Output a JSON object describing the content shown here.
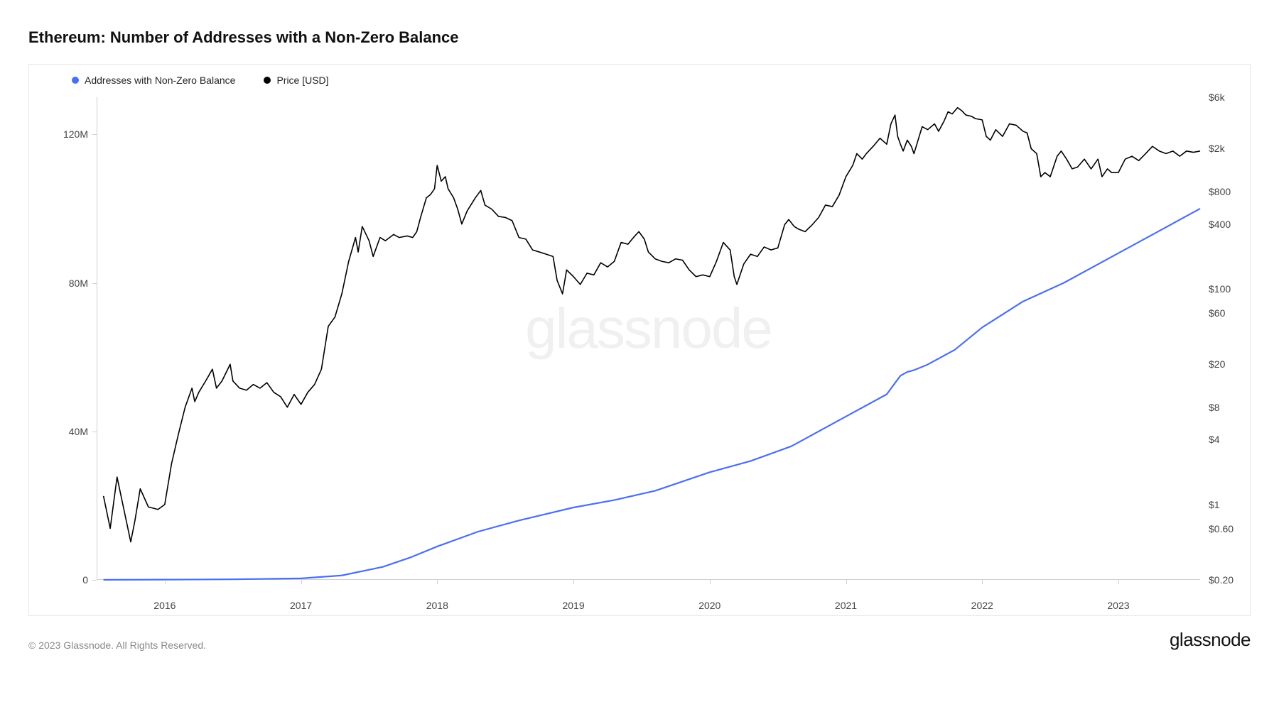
{
  "title": "Ethereum: Number of Addresses with a Non-Zero Balance",
  "copyright": "© 2023 Glassnode. All Rights Reserved.",
  "brand": "glassnode",
  "watermark": "glassnode",
  "legend": {
    "series1": {
      "label": "Addresses with Non-Zero Balance",
      "color": "#4a6ff5"
    },
    "series2": {
      "label": "Price [USD]",
      "color": "#000000"
    }
  },
  "chart": {
    "background_color": "#ffffff",
    "border_color": "#e6e6e6",
    "axis_color": "#cfcfcf",
    "tick_color": "#cfcfcf",
    "label_color": "#444444",
    "label_fontsize": 14,
    "x": {
      "domain": [
        2015.5,
        2023.6
      ],
      "ticks": [
        2016,
        2017,
        2018,
        2019,
        2020,
        2021,
        2022,
        2023
      ],
      "tick_labels": [
        "2016",
        "2017",
        "2018",
        "2019",
        "2020",
        "2021",
        "2022",
        "2023"
      ]
    },
    "y_left": {
      "scale": "linear",
      "domain": [
        0,
        130000000
      ],
      "ticks": [
        0,
        40000000,
        80000000,
        120000000
      ],
      "tick_labels": [
        "0",
        "40M",
        "80M",
        "120M"
      ]
    },
    "y_right": {
      "scale": "log",
      "domain": [
        0.2,
        6000
      ],
      "ticks": [
        0.2,
        0.6,
        1,
        4,
        8,
        20,
        60,
        100,
        400,
        800,
        2000,
        6000
      ],
      "tick_labels": [
        "$0.20",
        "$0.60",
        "$1",
        "$4",
        "$8",
        "$20",
        "$60",
        "$100",
        "$400",
        "$800",
        "$2k",
        "$6k"
      ]
    },
    "addresses_series": {
      "color": "#4a6ff5",
      "line_width": 2.2,
      "points": [
        [
          2015.55,
          20000
        ],
        [
          2016.0,
          60000
        ],
        [
          2016.5,
          150000
        ],
        [
          2017.0,
          400000
        ],
        [
          2017.3,
          1200000
        ],
        [
          2017.6,
          3500000
        ],
        [
          2017.8,
          6000000
        ],
        [
          2018.0,
          9000000
        ],
        [
          2018.3,
          13000000
        ],
        [
          2018.6,
          16000000
        ],
        [
          2019.0,
          19500000
        ],
        [
          2019.3,
          21500000
        ],
        [
          2019.6,
          24000000
        ],
        [
          2020.0,
          29000000
        ],
        [
          2020.3,
          32000000
        ],
        [
          2020.6,
          36000000
        ],
        [
          2021.0,
          44000000
        ],
        [
          2021.3,
          50000000
        ],
        [
          2021.4,
          55000000
        ],
        [
          2021.45,
          56000000
        ],
        [
          2021.5,
          56500000
        ],
        [
          2021.6,
          58000000
        ],
        [
          2021.8,
          62000000
        ],
        [
          2022.0,
          68000000
        ],
        [
          2022.3,
          75000000
        ],
        [
          2022.6,
          80000000
        ],
        [
          2023.0,
          88000000
        ],
        [
          2023.3,
          94000000
        ],
        [
          2023.6,
          100000000
        ]
      ]
    },
    "price_series": {
      "color": "#000000",
      "line_width": 1.6,
      "points": [
        [
          2015.55,
          1.2
        ],
        [
          2015.6,
          0.6
        ],
        [
          2015.65,
          1.8
        ],
        [
          2015.7,
          0.9
        ],
        [
          2015.75,
          0.45
        ],
        [
          2015.78,
          0.7
        ],
        [
          2015.82,
          1.4
        ],
        [
          2015.88,
          0.95
        ],
        [
          2015.95,
          0.9
        ],
        [
          2016.0,
          1.0
        ],
        [
          2016.05,
          2.4
        ],
        [
          2016.1,
          4.5
        ],
        [
          2016.15,
          8.0
        ],
        [
          2016.2,
          12.0
        ],
        [
          2016.22,
          9.0
        ],
        [
          2016.25,
          11.0
        ],
        [
          2016.3,
          14.0
        ],
        [
          2016.35,
          18.0
        ],
        [
          2016.38,
          12.0
        ],
        [
          2016.42,
          14.0
        ],
        [
          2016.48,
          20.0
        ],
        [
          2016.5,
          14.0
        ],
        [
          2016.55,
          12.0
        ],
        [
          2016.6,
          11.5
        ],
        [
          2016.65,
          13.0
        ],
        [
          2016.7,
          12.0
        ],
        [
          2016.75,
          13.5
        ],
        [
          2016.8,
          11.0
        ],
        [
          2016.85,
          10.0
        ],
        [
          2016.9,
          8.0
        ],
        [
          2016.95,
          10.5
        ],
        [
          2017.0,
          8.5
        ],
        [
          2017.05,
          11.0
        ],
        [
          2017.1,
          13.0
        ],
        [
          2017.15,
          18.0
        ],
        [
          2017.2,
          45.0
        ],
        [
          2017.25,
          55.0
        ],
        [
          2017.3,
          90.0
        ],
        [
          2017.35,
          180.0
        ],
        [
          2017.4,
          300.0
        ],
        [
          2017.42,
          220.0
        ],
        [
          2017.45,
          380.0
        ],
        [
          2017.5,
          280.0
        ],
        [
          2017.53,
          200.0
        ],
        [
          2017.58,
          300.0
        ],
        [
          2017.62,
          280.0
        ],
        [
          2017.68,
          320.0
        ],
        [
          2017.72,
          300.0
        ],
        [
          2017.78,
          310.0
        ],
        [
          2017.82,
          300.0
        ],
        [
          2017.85,
          340.0
        ],
        [
          2017.88,
          470.0
        ],
        [
          2017.92,
          700.0
        ],
        [
          2017.95,
          750.0
        ],
        [
          2017.98,
          850.0
        ],
        [
          2018.0,
          1400.0
        ],
        [
          2018.03,
          1000.0
        ],
        [
          2018.06,
          1100.0
        ],
        [
          2018.08,
          850.0
        ],
        [
          2018.12,
          700.0
        ],
        [
          2018.15,
          550.0
        ],
        [
          2018.18,
          400.0
        ],
        [
          2018.22,
          530.0
        ],
        [
          2018.28,
          700.0
        ],
        [
          2018.32,
          820.0
        ],
        [
          2018.35,
          600.0
        ],
        [
          2018.4,
          550.0
        ],
        [
          2018.45,
          470.0
        ],
        [
          2018.5,
          460.0
        ],
        [
          2018.55,
          430.0
        ],
        [
          2018.6,
          300.0
        ],
        [
          2018.65,
          290.0
        ],
        [
          2018.7,
          230.0
        ],
        [
          2018.75,
          220.0
        ],
        [
          2018.8,
          210.0
        ],
        [
          2018.85,
          200.0
        ],
        [
          2018.88,
          120.0
        ],
        [
          2018.92,
          90.0
        ],
        [
          2018.95,
          150.0
        ],
        [
          2019.0,
          130.0
        ],
        [
          2019.05,
          110.0
        ],
        [
          2019.1,
          140.0
        ],
        [
          2019.15,
          135.0
        ],
        [
          2019.2,
          175.0
        ],
        [
          2019.25,
          160.0
        ],
        [
          2019.3,
          180.0
        ],
        [
          2019.35,
          270.0
        ],
        [
          2019.4,
          260.0
        ],
        [
          2019.45,
          310.0
        ],
        [
          2019.48,
          340.0
        ],
        [
          2019.52,
          290.0
        ],
        [
          2019.55,
          220.0
        ],
        [
          2019.6,
          190.0
        ],
        [
          2019.65,
          180.0
        ],
        [
          2019.7,
          175.0
        ],
        [
          2019.75,
          190.0
        ],
        [
          2019.8,
          185.0
        ],
        [
          2019.85,
          150.0
        ],
        [
          2019.9,
          130.0
        ],
        [
          2019.95,
          135.0
        ],
        [
          2020.0,
          130.0
        ],
        [
          2020.05,
          180.0
        ],
        [
          2020.1,
          270.0
        ],
        [
          2020.15,
          230.0
        ],
        [
          2020.18,
          130.0
        ],
        [
          2020.2,
          110.0
        ],
        [
          2020.25,
          170.0
        ],
        [
          2020.3,
          210.0
        ],
        [
          2020.35,
          200.0
        ],
        [
          2020.4,
          245.0
        ],
        [
          2020.45,
          230.0
        ],
        [
          2020.5,
          240.0
        ],
        [
          2020.55,
          395.0
        ],
        [
          2020.58,
          440.0
        ],
        [
          2020.62,
          380.0
        ],
        [
          2020.65,
          360.0
        ],
        [
          2020.7,
          340.0
        ],
        [
          2020.75,
          390.0
        ],
        [
          2020.8,
          460.0
        ],
        [
          2020.85,
          600.0
        ],
        [
          2020.9,
          580.0
        ],
        [
          2020.95,
          740.0
        ],
        [
          2021.0,
          1100.0
        ],
        [
          2021.05,
          1400.0
        ],
        [
          2021.08,
          1800.0
        ],
        [
          2021.12,
          1600.0
        ],
        [
          2021.15,
          1800.0
        ],
        [
          2021.2,
          2100.0
        ],
        [
          2021.25,
          2500.0
        ],
        [
          2021.3,
          2200.0
        ],
        [
          2021.33,
          3400.0
        ],
        [
          2021.36,
          4100.0
        ],
        [
          2021.38,
          2600.0
        ],
        [
          2021.4,
          2200.0
        ],
        [
          2021.42,
          1900.0
        ],
        [
          2021.45,
          2400.0
        ],
        [
          2021.48,
          2100.0
        ],
        [
          2021.5,
          1800.0
        ],
        [
          2021.53,
          2400.0
        ],
        [
          2021.56,
          3200.0
        ],
        [
          2021.6,
          3000.0
        ],
        [
          2021.65,
          3400.0
        ],
        [
          2021.68,
          2900.0
        ],
        [
          2021.72,
          3600.0
        ],
        [
          2021.75,
          4400.0
        ],
        [
          2021.78,
          4200.0
        ],
        [
          2021.82,
          4800.0
        ],
        [
          2021.85,
          4500.0
        ],
        [
          2021.88,
          4100.0
        ],
        [
          2021.92,
          4000.0
        ],
        [
          2021.95,
          3800.0
        ],
        [
          2022.0,
          3700.0
        ],
        [
          2022.03,
          2600.0
        ],
        [
          2022.06,
          2400.0
        ],
        [
          2022.1,
          3000.0
        ],
        [
          2022.15,
          2600.0
        ],
        [
          2022.2,
          3400.0
        ],
        [
          2022.25,
          3300.0
        ],
        [
          2022.3,
          2900.0
        ],
        [
          2022.33,
          2800.0
        ],
        [
          2022.36,
          2000.0
        ],
        [
          2022.4,
          1800.0
        ],
        [
          2022.43,
          1100.0
        ],
        [
          2022.46,
          1200.0
        ],
        [
          2022.5,
          1100.0
        ],
        [
          2022.55,
          1700.0
        ],
        [
          2022.58,
          1900.0
        ],
        [
          2022.62,
          1600.0
        ],
        [
          2022.66,
          1300.0
        ],
        [
          2022.7,
          1350.0
        ],
        [
          2022.75,
          1600.0
        ],
        [
          2022.8,
          1300.0
        ],
        [
          2022.85,
          1600.0
        ],
        [
          2022.88,
          1100.0
        ],
        [
          2022.92,
          1300.0
        ],
        [
          2022.95,
          1200.0
        ],
        [
          2023.0,
          1200.0
        ],
        [
          2023.05,
          1600.0
        ],
        [
          2023.1,
          1700.0
        ],
        [
          2023.15,
          1550.0
        ],
        [
          2023.2,
          1800.0
        ],
        [
          2023.25,
          2100.0
        ],
        [
          2023.3,
          1900.0
        ],
        [
          2023.35,
          1800.0
        ],
        [
          2023.4,
          1900.0
        ],
        [
          2023.45,
          1700.0
        ],
        [
          2023.5,
          1900.0
        ],
        [
          2023.55,
          1850.0
        ],
        [
          2023.6,
          1900.0
        ]
      ]
    }
  }
}
